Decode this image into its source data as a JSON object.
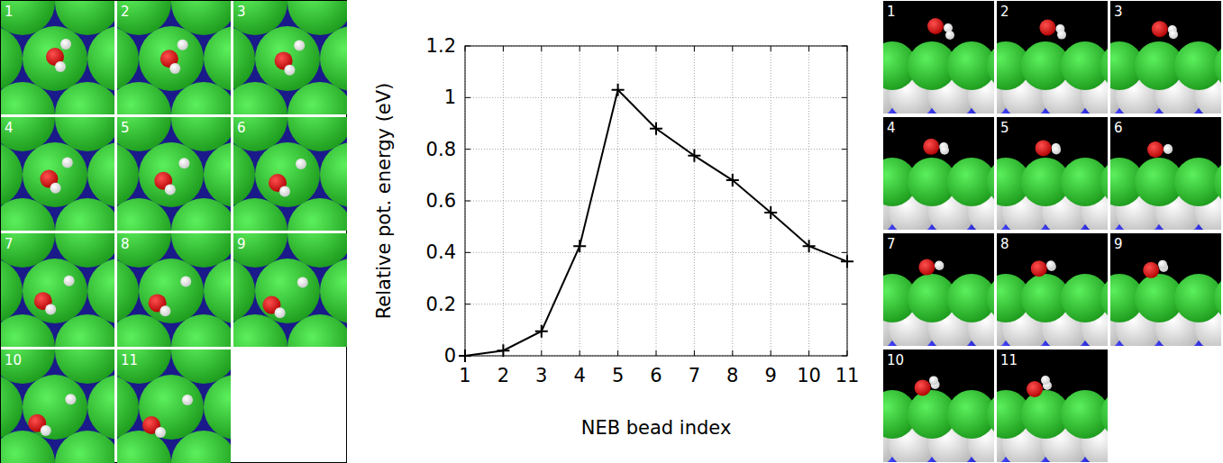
{
  "chart_data": {
    "type": "line",
    "xlabel": "NEB bead index",
    "ylabel": "Relative pot. energy (eV)",
    "x": [
      1,
      2,
      3,
      4,
      5,
      6,
      7,
      8,
      9,
      10,
      11
    ],
    "values": [
      0,
      0.02,
      0.095,
      0.425,
      1.03,
      0.88,
      0.775,
      0.68,
      0.555,
      0.425,
      0.365
    ],
    "color": "#000000",
    "marker": "plus",
    "line_style": "solid",
    "xlim": [
      1,
      11
    ],
    "ylim": [
      0,
      1.2
    ],
    "xticks": [
      1,
      2,
      3,
      4,
      5,
      6,
      7,
      8,
      9,
      10,
      11
    ],
    "yticks": [
      0,
      0.2,
      0.4,
      0.6,
      0.8,
      1,
      1.2
    ],
    "grid": true
  },
  "figure": {
    "top_view_labels": [
      "1",
      "2",
      "3",
      "4",
      "5",
      "6",
      "7",
      "8",
      "9",
      "10",
      "11"
    ],
    "side_view_labels": [
      "1",
      "2",
      "3",
      "4",
      "5",
      "6",
      "7",
      "8",
      "9",
      "10",
      "11"
    ]
  }
}
